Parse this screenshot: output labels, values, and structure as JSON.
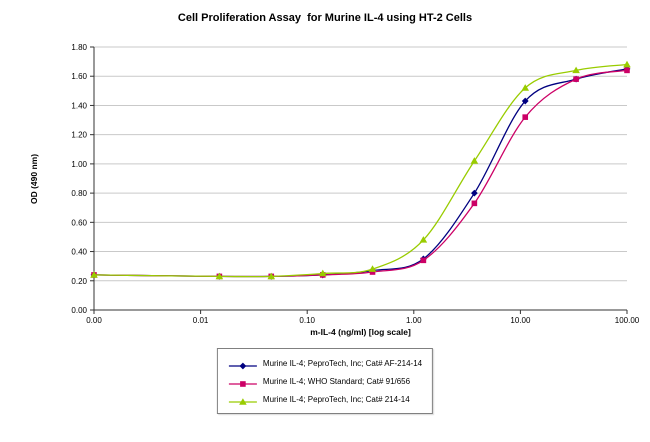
{
  "chart_data": {
    "type": "line",
    "title": "Cell Proliferation Assay  for Murine IL-4 using HT-2 Cells",
    "xlabel": "m-IL-4 (ng/ml) [log scale]",
    "ylabel": "OD (490 nm)",
    "x_scale": "log",
    "xlim": [
      0.001,
      100
    ],
    "ylim": [
      0,
      1.8
    ],
    "grid": "horizontal-only",
    "grid_color": "#C9C9C9",
    "legend_position": "bottom-center",
    "x_ticks": [
      {
        "value": 0.001,
        "label": "0.00"
      },
      {
        "value": 0.01,
        "label": "0.01"
      },
      {
        "value": 0.1,
        "label": "0.10"
      },
      {
        "value": 1,
        "label": "1.00"
      },
      {
        "value": 10,
        "label": "10.00"
      },
      {
        "value": 100,
        "label": "100.00"
      }
    ],
    "y_ticks": [
      {
        "value": 0.0,
        "label": "0.00"
      },
      {
        "value": 0.2,
        "label": "0.20"
      },
      {
        "value": 0.4,
        "label": "0.40"
      },
      {
        "value": 0.6,
        "label": "0.60"
      },
      {
        "value": 0.8,
        "label": "0.80"
      },
      {
        "value": 1.0,
        "label": "1.00"
      },
      {
        "value": 1.2,
        "label": "1.20"
      },
      {
        "value": 1.4,
        "label": "1.40"
      },
      {
        "value": 1.6,
        "label": "1.60"
      },
      {
        "value": 1.8,
        "label": "1.80"
      }
    ],
    "x": [
      0.001,
      0.015,
      0.046,
      0.14,
      0.41,
      1.23,
      3.7,
      11.1,
      33.3,
      100
    ],
    "series": [
      {
        "name": "Murine IL-4; PeproTech, Inc; Cat# AF-214-14",
        "color": "#000080",
        "marker": "diamond",
        "values": [
          0.24,
          0.23,
          0.23,
          0.24,
          0.27,
          0.35,
          0.8,
          1.43,
          1.58,
          1.65
        ]
      },
      {
        "name": "Murine IL-4; WHO Standard; Cat# 91/656",
        "color": "#CC0066",
        "marker": "square",
        "values": [
          0.24,
          0.23,
          0.23,
          0.24,
          0.26,
          0.34,
          0.73,
          1.32,
          1.58,
          1.64
        ]
      },
      {
        "name": "Murine IL-4; PeproTech, Inc; Cat# 214-14",
        "color": "#99CC00",
        "marker": "triangle",
        "values": [
          0.24,
          0.23,
          0.23,
          0.25,
          0.28,
          0.48,
          1.02,
          1.52,
          1.64,
          1.68
        ]
      }
    ]
  }
}
